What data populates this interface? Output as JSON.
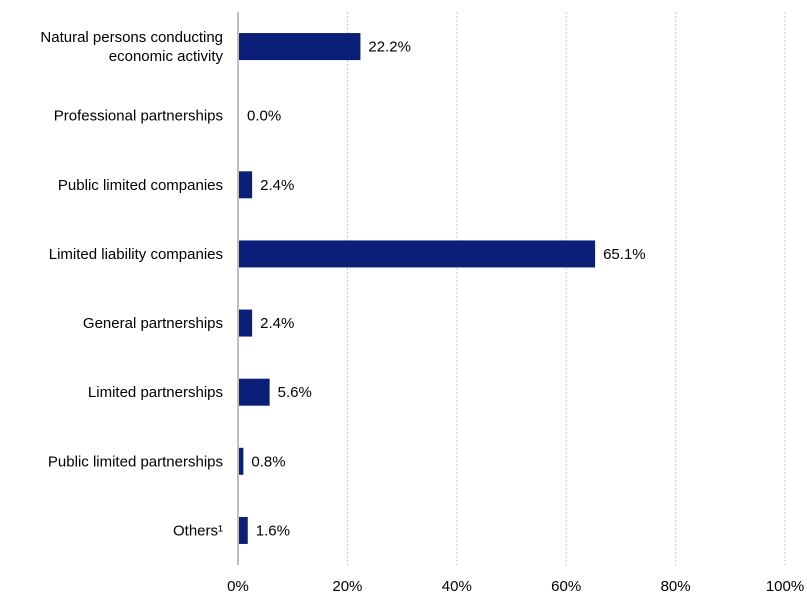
{
  "chart_data": {
    "type": "bar",
    "orientation": "horizontal",
    "categories": [
      [
        "Natural persons conducting",
        "economic activity"
      ],
      [
        "Professional partnerships"
      ],
      [
        "Public limited companies"
      ],
      [
        "Limited liability companies"
      ],
      [
        "General partnerships"
      ],
      [
        "Limited partnerships"
      ],
      [
        "Public limited partnerships"
      ],
      [
        "Others¹"
      ]
    ],
    "values": [
      22.2,
      0.0,
      2.4,
      65.1,
      2.4,
      5.6,
      0.8,
      1.6
    ],
    "value_labels": [
      "22.2%",
      "0.0%",
      "2.4%",
      "65.1%",
      "2.4%",
      "5.6%",
      "0.8%",
      "1.6%"
    ],
    "xlim": [
      0,
      100
    ],
    "xticks": [
      0,
      20,
      40,
      60,
      80,
      100
    ],
    "xtick_labels": [
      "0%",
      "20%",
      "40%",
      "60%",
      "80%",
      "100%"
    ],
    "title": "",
    "xlabel": "",
    "ylabel": "",
    "grid": "vertical dotted",
    "colors": {
      "bar": "#0b1f78",
      "grid": "#b3b3d6",
      "axis": "#7f7f7f"
    }
  }
}
